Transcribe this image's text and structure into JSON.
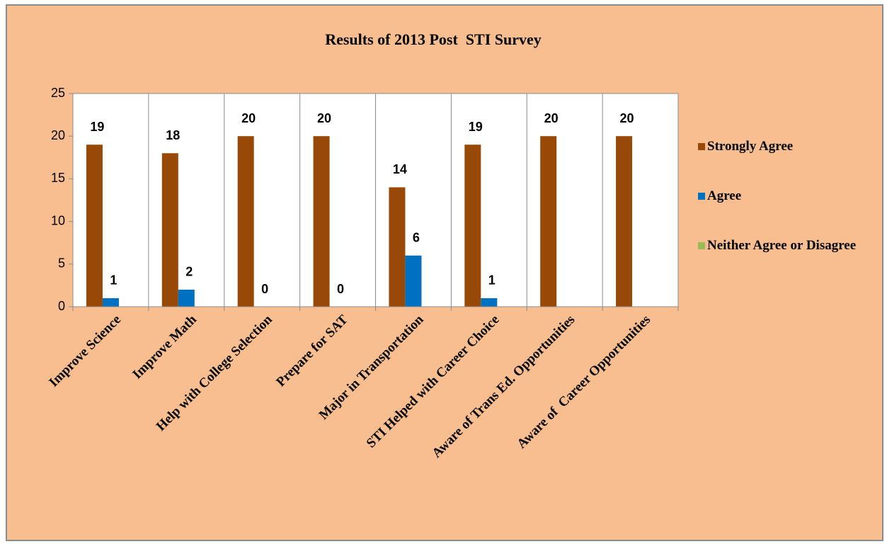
{
  "chart_data": {
    "type": "bar",
    "title": "Results of 2013 Post  STI Survey",
    "categories": [
      "Improve Science",
      "Improve Math",
      "Help with College Selection",
      "Prepare for SAT",
      "Major in Transportation",
      "STI Helped with Career Choice",
      "Aware of Trans Ed. Opportunities",
      "Aware of  Career Opportunities"
    ],
    "series": [
      {
        "name": "Strongly Agree",
        "color": "#984807",
        "values": [
          19,
          18,
          20,
          20,
          14,
          19,
          20,
          20
        ]
      },
      {
        "name": "Agree",
        "color": "#0070c0",
        "values": [
          1,
          2,
          0,
          0,
          6,
          1,
          null,
          null
        ]
      },
      {
        "name": "Neither Agree or Disagree",
        "color": "#9bbb59",
        "values": [
          null,
          null,
          null,
          null,
          null,
          null,
          null,
          null
        ]
      }
    ],
    "ylim": [
      0,
      25
    ],
    "yticks": [
      0,
      5,
      10,
      15,
      20,
      25
    ],
    "legend": "right",
    "data_labels": true
  }
}
